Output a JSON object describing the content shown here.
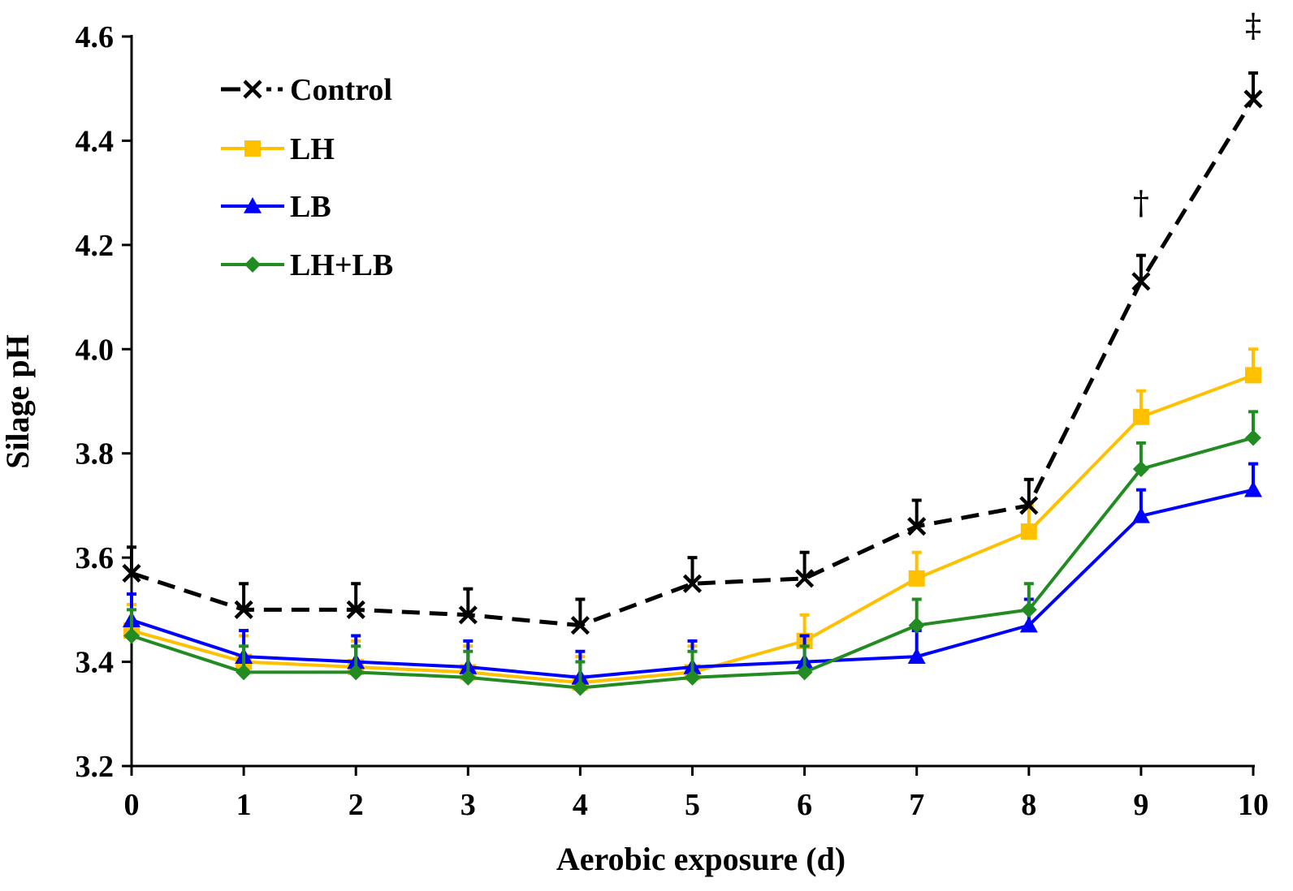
{
  "chart_data": {
    "type": "line",
    "xlabel": "Aerobic exposure (d)",
    "ylabel": "Silage pH",
    "x": [
      0,
      1,
      2,
      3,
      4,
      5,
      6,
      7,
      8,
      9,
      10
    ],
    "xlim": [
      0,
      10
    ],
    "ylim": [
      3.2,
      4.6
    ],
    "yticks": [
      3.2,
      3.4,
      3.6,
      3.8,
      4.0,
      4.2,
      4.4,
      4.6
    ],
    "ytick_labels": [
      "3.2",
      "3.4",
      "3.6",
      "3.8",
      "4.0",
      "4.2",
      "4.4",
      "4.6"
    ],
    "xtick_labels": [
      "0",
      "1",
      "2",
      "3",
      "4",
      "5",
      "6",
      "7",
      "8",
      "9",
      "10"
    ],
    "grid": false,
    "legend_position": "top-left",
    "series": [
      {
        "name": "Control",
        "color": "#000000",
        "marker": "x",
        "dashed": true,
        "values": [
          3.57,
          3.5,
          3.5,
          3.49,
          3.47,
          3.55,
          3.56,
          3.66,
          3.7,
          4.13,
          4.48
        ],
        "errors": [
          0.05,
          0.05,
          0.05,
          0.05,
          0.05,
          0.05,
          0.05,
          0.05,
          0.05,
          0.05,
          0.05
        ]
      },
      {
        "name": "LH",
        "color": "#FFC000",
        "marker": "square",
        "dashed": false,
        "values": [
          3.46,
          3.4,
          3.39,
          3.38,
          3.36,
          3.38,
          3.44,
          3.56,
          3.65,
          3.87,
          3.95
        ],
        "errors": [
          0.05,
          0.05,
          0.05,
          0.05,
          0.05,
          0.05,
          0.05,
          0.05,
          0.05,
          0.05,
          0.05
        ]
      },
      {
        "name": "LB",
        "color": "#0000FF",
        "marker": "triangle",
        "dashed": false,
        "values": [
          3.48,
          3.41,
          3.4,
          3.39,
          3.37,
          3.39,
          3.4,
          3.41,
          3.47,
          3.68,
          3.73
        ],
        "errors": [
          0.05,
          0.05,
          0.05,
          0.05,
          0.05,
          0.05,
          0.05,
          0.05,
          0.05,
          0.05,
          0.05
        ]
      },
      {
        "name": "LH+LB",
        "color": "#228B22",
        "marker": "diamond",
        "dashed": false,
        "values": [
          3.45,
          3.38,
          3.38,
          3.37,
          3.35,
          3.37,
          3.38,
          3.47,
          3.5,
          3.77,
          3.83
        ],
        "errors": [
          0.05,
          0.05,
          0.05,
          0.05,
          0.05,
          0.05,
          0.05,
          0.05,
          0.05,
          0.05,
          0.05
        ]
      }
    ],
    "annotations": [
      {
        "text": "†",
        "x": 9,
        "y": 4.26
      },
      {
        "text": "‡",
        "x": 10,
        "y": 4.6
      }
    ]
  }
}
